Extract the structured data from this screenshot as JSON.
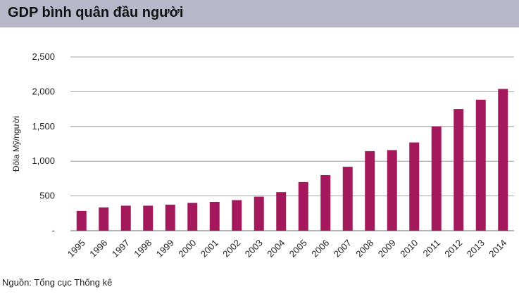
{
  "header": {
    "title": "GDP bình quân đầu người"
  },
  "source_note": "Nguồn: Tổng cục Thống kê",
  "colors": {
    "header_background": "#b7b7c9",
    "bar": "#a3195b",
    "grid": "#888888"
  },
  "chart_data": {
    "type": "bar",
    "ylabel": "Đôla Mỹ/người",
    "xlabel": "",
    "ylim": [
      0,
      2500
    ],
    "grid": true,
    "ytick_labels": [
      "-",
      "500",
      "1,000",
      "1,500",
      "2,000",
      "2,500"
    ],
    "categories": [
      "1995",
      "1996",
      "1997",
      "1998",
      "1999",
      "2000",
      "2001",
      "2002",
      "2003",
      "2004",
      "2005",
      "2006",
      "2007",
      "2008",
      "2009",
      "2010",
      "2011",
      "2012",
      "2013",
      "2014"
    ],
    "values": [
      285,
      335,
      360,
      360,
      375,
      400,
      415,
      440,
      490,
      555,
      700,
      800,
      920,
      1145,
      1160,
      1270,
      1500,
      1750,
      1885,
      2040
    ]
  }
}
